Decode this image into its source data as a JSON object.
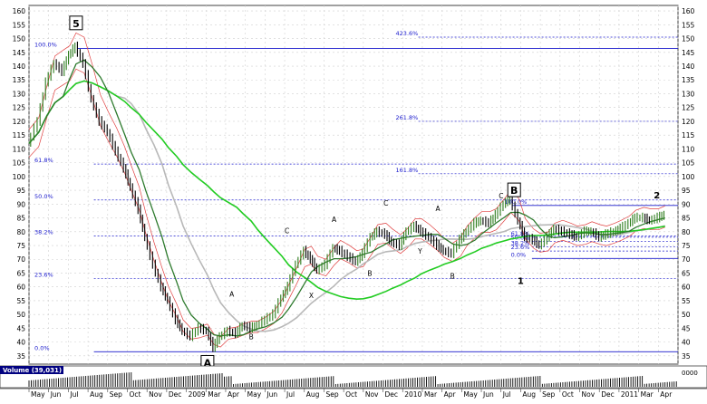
{
  "chart_data": {
    "type": "line",
    "title": "",
    "xlabel": "",
    "ylabel": "",
    "ylim": [
      32,
      162
    ],
    "y_ticks": [
      35,
      40,
      45,
      50,
      55,
      60,
      65,
      70,
      75,
      80,
      85,
      90,
      95,
      100,
      105,
      110,
      115,
      120,
      125,
      130,
      135,
      140,
      145,
      150,
      155,
      160
    ],
    "x_labels": [
      "May",
      "Jun",
      "Jul",
      "Aug",
      "Sep",
      "Oct",
      "Nov",
      "Dec",
      "2009",
      "Mar",
      "Apr",
      "May",
      "Jun",
      "Jul",
      "Aug",
      "Sep",
      "Oct",
      "Nov",
      "Dec",
      "2010",
      "Mar",
      "Apr",
      "May",
      "Jun",
      "Jul",
      "Aug",
      "Sep",
      "Oct",
      "Nov",
      "Dec",
      "2011",
      "Mar",
      "Apr"
    ],
    "grid": true,
    "legend": "none",
    "colors": {
      "price_up": "#2e7d1e",
      "price_down": "#000000",
      "envelope": "#e04040",
      "ma_fast": "#2d7a2d",
      "ma_slow": "#b8b8b8",
      "ma_long": "#22cc22",
      "level_line": "#1a1acc",
      "volume_bg": "#000080"
    },
    "series": [
      {
        "points": [
          [
            0,
            112
          ],
          [
            6,
            120
          ],
          [
            11,
            134
          ],
          [
            16,
            141
          ],
          [
            21,
            138
          ],
          [
            25,
            144
          ],
          [
            29,
            147
          ],
          [
            34,
            141
          ],
          [
            39,
            128
          ],
          [
            44,
            120
          ],
          [
            49,
            116
          ],
          [
            54,
            109
          ],
          [
            59,
            103
          ],
          [
            63,
            96
          ],
          [
            68,
            88
          ],
          [
            72,
            78
          ],
          [
            77,
            68
          ],
          [
            82,
            60
          ],
          [
            86,
            55
          ],
          [
            91,
            48
          ],
          [
            95,
            44
          ],
          [
            100,
            42
          ],
          [
            105,
            45
          ],
          [
            110,
            44
          ],
          [
            114,
            38
          ],
          [
            118,
            42
          ],
          [
            123,
            44
          ],
          [
            128,
            43
          ],
          [
            132,
            46
          ],
          [
            137,
            45
          ],
          [
            141,
            46
          ],
          [
            146,
            48
          ],
          [
            151,
            50
          ],
          [
            156,
            56
          ],
          [
            160,
            60
          ],
          [
            165,
            68
          ],
          [
            170,
            73
          ],
          [
            174,
            70
          ],
          [
            178,
            66
          ],
          [
            183,
            68
          ],
          [
            188,
            74
          ],
          [
            192,
            73
          ],
          [
            197,
            71
          ],
          [
            202,
            69
          ],
          [
            206,
            72
          ],
          [
            211,
            78
          ],
          [
            215,
            80
          ],
          [
            220,
            79
          ],
          [
            224,
            76
          ],
          [
            229,
            75
          ],
          [
            233,
            80
          ],
          [
            238,
            82
          ],
          [
            242,
            80
          ],
          [
            247,
            78
          ],
          [
            252,
            75
          ],
          [
            256,
            73
          ],
          [
            261,
            72
          ],
          [
            266,
            77
          ],
          [
            270,
            80
          ],
          [
            275,
            83
          ],
          [
            279,
            84
          ],
          [
            284,
            83
          ],
          [
            288,
            86
          ],
          [
            293,
            90
          ],
          [
            297,
            92
          ],
          [
            302,
            84
          ],
          [
            306,
            78
          ],
          [
            311,
            77
          ],
          [
            315,
            75
          ],
          [
            320,
            78
          ],
          [
            324,
            81
          ],
          [
            329,
            80
          ],
          [
            334,
            79
          ],
          [
            338,
            78
          ],
          [
            343,
            80
          ],
          [
            347,
            80
          ],
          [
            352,
            78
          ],
          [
            356,
            79
          ],
          [
            361,
            80
          ],
          [
            365,
            81
          ],
          [
            370,
            83
          ],
          [
            374,
            85
          ],
          [
            379,
            85
          ],
          [
            383,
            84
          ],
          [
            388,
            85
          ],
          [
            392,
            86
          ]
        ]
      }
    ],
    "levels": [
      {
        "label": "100.0%",
        "value": 146.4
      },
      {
        "label": "423.6%",
        "value": 150.5
      },
      {
        "label": "261.8%",
        "value": 120
      },
      {
        "label": "61.8%",
        "value": 104.5
      },
      {
        "label": "161.8%",
        "value": 101
      },
      {
        "label": "50.0%",
        "value": 91.5
      },
      {
        "label": "100.0%",
        "value": 89.5
      },
      {
        "label": "38.2%",
        "value": 78.5
      },
      {
        "label": "61.8%",
        "value": 78
      },
      {
        "label": "50.0%",
        "value": 76.5
      },
      {
        "label": "38.2%",
        "value": 74.5
      },
      {
        "label": "23.6%",
        "value": 73
      },
      {
        "label": "0.0%",
        "value": 70.3
      },
      {
        "label": "23.6%",
        "value": 63
      },
      {
        "label": "0.0%",
        "value": 36.5
      }
    ],
    "wave_labels": [
      {
        "text": "5",
        "i": 29,
        "y": 155.5,
        "boxed": true
      },
      {
        "text": "A",
        "i": 110,
        "y": 32.5,
        "boxed": true
      },
      {
        "text": "A",
        "i": 125,
        "y": 57.5,
        "boxed": false
      },
      {
        "text": "B",
        "i": 137,
        "y": 42,
        "boxed": false
      },
      {
        "text": "C",
        "i": 159,
        "y": 80.5,
        "boxed": false
      },
      {
        "text": "X",
        "i": 174,
        "y": 57,
        "boxed": false
      },
      {
        "text": "A",
        "i": 188,
        "y": 84.5,
        "boxed": false
      },
      {
        "text": "B",
        "i": 210,
        "y": 65,
        "boxed": false
      },
      {
        "text": "C",
        "i": 220,
        "y": 90.5,
        "boxed": false
      },
      {
        "text": "Y",
        "i": 241,
        "y": 73,
        "boxed": false
      },
      {
        "text": "A",
        "i": 252,
        "y": 88.5,
        "boxed": false
      },
      {
        "text": "B",
        "i": 261,
        "y": 64,
        "boxed": false
      },
      {
        "text": "C",
        "i": 291,
        "y": 93,
        "boxed": false
      },
      {
        "text": "B",
        "i": 299,
        "y": 95,
        "boxed": true
      },
      {
        "text": "1",
        "i": 303,
        "y": 62,
        "boxed": false
      },
      {
        "text": "2",
        "i": 387,
        "y": 93,
        "boxed": false
      }
    ],
    "volume": {
      "label": "Volume (39,031)",
      "right_label": "0000"
    }
  }
}
